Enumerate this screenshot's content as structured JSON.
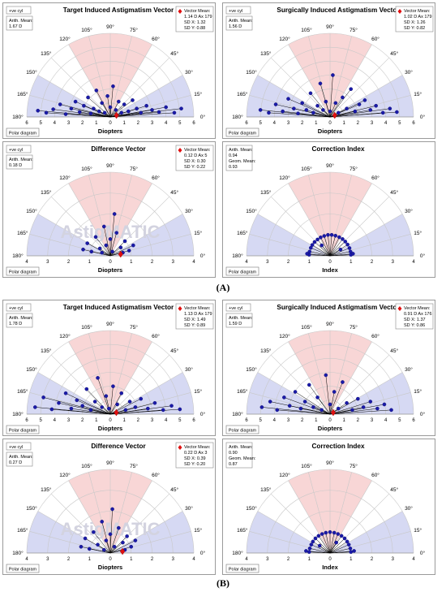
{
  "labels": {
    "polar_diagram": "Polar diagram",
    "cyl": "+ve cyl"
  },
  "sections": [
    {
      "label": "(A)",
      "panels": [
        {
          "title": "Target Induced Astigmatism Vector",
          "xlabel": "Diopters",
          "arith_lines": [
            "Arith. Mean:",
            "1.67 D"
          ],
          "vector_lines": [
            "Vector Mean:",
            "1.14 D Ax 179",
            "SD X: 1.32",
            "SD Y: 0.88"
          ],
          "show_cyl": true
        },
        {
          "title": "Surgically Induced Astigmatism Vector",
          "xlabel": "Diopters",
          "arith_lines": [
            "Arith. Mean:",
            "1.56 D"
          ],
          "vector_lines": [
            "Vector Mean:",
            "1.02 D Ax 179",
            "SD X: 1.26",
            "SD Y: 0.82"
          ],
          "show_cyl": true
        },
        {
          "title": "Difference Vector",
          "xlabel": "Diopters",
          "arith_lines": [
            "Arith. Mean:",
            "0.18 D"
          ],
          "vector_lines": [
            "Vector Mean:",
            "0.12 D Ax 5",
            "SD X: 0.30",
            "SD Y: 0.22"
          ],
          "show_cyl": true,
          "watermark": "AstigMATIC"
        },
        {
          "title": "Correction Index",
          "xlabel": "Index",
          "arith_lines": [
            "Arith. Mean:",
            "0.94",
            "Geom. Mean:",
            "0.93"
          ],
          "vector_lines": [],
          "show_cyl": false
        }
      ]
    },
    {
      "label": "(B)",
      "panels": [
        {
          "title": "Target Induced Astigmatism Vector",
          "xlabel": "Diopters",
          "arith_lines": [
            "Arith. Mean:",
            "1.78 D"
          ],
          "vector_lines": [
            "Vector Mean:",
            "1.13 D Ax 179",
            "SD X: 1.49",
            "SD Y: 0.89"
          ],
          "show_cyl": true
        },
        {
          "title": "Surgically Induced Astigmatism Vector",
          "xlabel": "Diopters",
          "arith_lines": [
            "Arith. Mean:",
            "1.59 D"
          ],
          "vector_lines": [
            "Vector Mean:",
            "0.91 D Ax 176",
            "SD X: 1.37",
            "SD Y: 0.86"
          ],
          "show_cyl": true
        },
        {
          "title": "Difference Vector",
          "xlabel": "Diopters",
          "arith_lines": [
            "Arith. Mean:",
            "0.27 D"
          ],
          "vector_lines": [
            "Vector Mean:",
            "0.22 D Ax 3",
            "SD X: 0.39",
            "SD Y: 0.20"
          ],
          "show_cyl": true,
          "watermark": "AstigMATIC"
        },
        {
          "title": "Correction Index",
          "xlabel": "Index",
          "arith_lines": [
            "Arith. Mean:",
            "0.90",
            "Geom. Mean:",
            "0.87"
          ],
          "vector_lines": [],
          "show_cyl": false
        }
      ]
    }
  ],
  "chart_data": [
    {
      "type": "scatter",
      "title": "Target Induced Astigmatism Vector",
      "xlabel": "Diopters",
      "xlim": [
        -6,
        6
      ],
      "angle_ticks": [
        "0°",
        "15°",
        "30°",
        "45°",
        "60°",
        "75°",
        "90°",
        "105°",
        "120°",
        "135°",
        "150°",
        "165°",
        "180°"
      ],
      "radial_ticks": [
        "6",
        "5",
        "4",
        "3",
        "2",
        "1",
        "0",
        "1",
        "2",
        "3",
        "4",
        "5",
        "6"
      ],
      "vector_mean": {
        "magnitude": 1.14,
        "axis": 179
      },
      "points": [
        [
          -5.2,
          0.45
        ],
        [
          -4.6,
          0.3
        ],
        [
          -4.1,
          0.55
        ],
        [
          -3.6,
          0.9
        ],
        [
          -3.2,
          0.2
        ],
        [
          -2.8,
          0.6
        ],
        [
          -2.5,
          1.1
        ],
        [
          -2.2,
          0.35
        ],
        [
          -1.9,
          0.8
        ],
        [
          -1.6,
          1.4
        ],
        [
          -1.4,
          0.25
        ],
        [
          -1.2,
          0.6
        ],
        [
          -1.0,
          1.9
        ],
        [
          -0.8,
          0.4
        ],
        [
          -0.6,
          1.0
        ],
        [
          -0.4,
          0.3
        ],
        [
          -0.2,
          1.5
        ],
        [
          0.0,
          0.7
        ],
        [
          0.2,
          2.2
        ],
        [
          0.4,
          0.5
        ],
        [
          0.6,
          1.1
        ],
        [
          0.8,
          0.3
        ],
        [
          1.0,
          0.9
        ],
        [
          1.3,
          0.4
        ],
        [
          1.6,
          1.2
        ],
        [
          1.9,
          0.6
        ],
        [
          2.2,
          0.3
        ],
        [
          2.6,
          0.8
        ],
        [
          3.0,
          0.5
        ],
        [
          3.5,
          0.35
        ],
        [
          4.0,
          0.7
        ],
        [
          4.6,
          0.3
        ],
        [
          5.1,
          0.6
        ]
      ]
    },
    {
      "type": "scatter",
      "title": "Surgically Induced Astigmatism Vector",
      "xlabel": "Diopters",
      "xlim": [
        -6,
        6
      ],
      "angle_ticks": [
        "0°",
        "15°",
        "30°",
        "45°",
        "60°",
        "75°",
        "90°",
        "105°",
        "120°",
        "135°",
        "150°",
        "165°",
        "180°"
      ],
      "radial_ticks": [
        "6",
        "5",
        "4",
        "3",
        "2",
        "1",
        "0",
        "1",
        "2",
        "3",
        "4",
        "5",
        "6"
      ],
      "vector_mean": {
        "magnitude": 1.02,
        "axis": 179
      },
      "points": [
        [
          -5.0,
          0.5
        ],
        [
          -4.4,
          0.3
        ],
        [
          -3.9,
          0.9
        ],
        [
          -3.4,
          0.4
        ],
        [
          -3.0,
          1.3
        ],
        [
          -2.6,
          0.6
        ],
        [
          -2.3,
          0.25
        ],
        [
          -2.0,
          1.0
        ],
        [
          -1.7,
          0.5
        ],
        [
          -1.4,
          1.7
        ],
        [
          -1.2,
          0.3
        ],
        [
          -0.9,
          0.8
        ],
        [
          -0.7,
          2.4
        ],
        [
          -0.5,
          0.5
        ],
        [
          -0.3,
          1.1
        ],
        [
          0.0,
          0.4
        ],
        [
          0.2,
          3.0
        ],
        [
          0.4,
          1.0
        ],
        [
          0.6,
          0.3
        ],
        [
          0.9,
          1.4
        ],
        [
          1.2,
          0.6
        ],
        [
          1.5,
          2.0
        ],
        [
          1.8,
          0.4
        ],
        [
          2.1,
          0.9
        ],
        [
          2.5,
          1.2
        ],
        [
          2.9,
          0.5
        ],
        [
          3.3,
          0.8
        ],
        [
          3.8,
          0.3
        ],
        [
          4.3,
          0.6
        ],
        [
          4.8,
          0.35
        ]
      ]
    },
    {
      "type": "scatter",
      "title": "Difference Vector",
      "xlabel": "Diopters",
      "xlim": [
        -4,
        4
      ],
      "angle_ticks": [
        "0°",
        "15°",
        "30°",
        "45°",
        "60°",
        "75°",
        "90°",
        "105°",
        "120°",
        "135°",
        "150°",
        "165°",
        "180°"
      ],
      "radial_ticks": [
        "4",
        "3",
        "2",
        "1",
        "0",
        "1",
        "2",
        "3",
        "4"
      ],
      "vector_mean": {
        "magnitude": 0.12,
        "axis": 5
      },
      "points": [
        [
          -1.3,
          0.3
        ],
        [
          -1.1,
          0.6
        ],
        [
          -0.9,
          0.2
        ],
        [
          -0.7,
          0.9
        ],
        [
          -0.5,
          0.35
        ],
        [
          -0.3,
          1.4
        ],
        [
          -0.2,
          0.5
        ],
        [
          0.0,
          0.8
        ],
        [
          0.1,
          0.2
        ],
        [
          0.3,
          1.1
        ],
        [
          0.5,
          0.4
        ],
        [
          0.7,
          0.7
        ],
        [
          0.9,
          0.25
        ],
        [
          1.1,
          0.5
        ],
        [
          0.2,
          2.0
        ],
        [
          -0.4,
          0.15
        ],
        [
          0.6,
          0.15
        ]
      ]
    },
    {
      "type": "scatter",
      "title": "Correction Index",
      "xlabel": "Index",
      "xlim": [
        -4,
        4
      ],
      "angle_ticks": [
        "0°",
        "15°",
        "30°",
        "45°",
        "60°",
        "75°",
        "90°",
        "105°",
        "120°",
        "135°",
        "150°",
        "165°",
        "180°"
      ],
      "radial_ticks": [
        "4",
        "3",
        "2",
        "1",
        "0",
        "1",
        "2",
        "3",
        "4"
      ],
      "points": [
        [
          -1.0,
          0.05
        ],
        [
          -0.98,
          0.2
        ],
        [
          -0.92,
          0.38
        ],
        [
          -0.85,
          0.52
        ],
        [
          -0.74,
          0.66
        ],
        [
          -0.6,
          0.78
        ],
        [
          -0.45,
          0.88
        ],
        [
          -0.28,
          0.95
        ],
        [
          -0.1,
          1.0
        ],
        [
          0.08,
          1.0
        ],
        [
          0.26,
          0.96
        ],
        [
          0.44,
          0.89
        ],
        [
          0.6,
          0.8
        ],
        [
          0.73,
          0.68
        ],
        [
          0.84,
          0.54
        ],
        [
          0.93,
          0.37
        ],
        [
          0.98,
          0.2
        ],
        [
          1.0,
          0.05
        ],
        [
          1.1,
          0.1
        ],
        [
          -1.1,
          0.1
        ],
        [
          0.5,
          0.3
        ],
        [
          -0.4,
          0.5
        ]
      ]
    },
    {
      "type": "scatter",
      "title": "Target Induced Astigmatism Vector",
      "xlabel": "Diopters",
      "xlim": [
        -6,
        6
      ],
      "angle_ticks": [
        "0°",
        "15°",
        "30°",
        "45°",
        "60°",
        "75°",
        "90°",
        "105°",
        "120°",
        "135°",
        "150°",
        "165°",
        "180°"
      ],
      "radial_ticks": [
        "6",
        "5",
        "4",
        "3",
        "2",
        "1",
        "0",
        "1",
        "2",
        "3",
        "4",
        "5",
        "6"
      ],
      "vector_mean": {
        "magnitude": 1.13,
        "axis": 179
      },
      "points": [
        [
          -5.4,
          0.5
        ],
        [
          -4.8,
          1.2
        ],
        [
          -4.2,
          0.35
        ],
        [
          -3.7,
          0.8
        ],
        [
          -3.2,
          1.5
        ],
        [
          -2.8,
          0.4
        ],
        [
          -2.4,
          1.0
        ],
        [
          -2.0,
          0.6
        ],
        [
          -1.7,
          1.8
        ],
        [
          -1.4,
          0.3
        ],
        [
          -1.1,
          0.9
        ],
        [
          -0.9,
          2.6
        ],
        [
          -0.6,
          0.5
        ],
        [
          -0.3,
          1.3
        ],
        [
          -0.1,
          0.4
        ],
        [
          0.2,
          2.0
        ],
        [
          0.5,
          0.7
        ],
        [
          0.8,
          1.5
        ],
        [
          1.1,
          0.3
        ],
        [
          1.4,
          0.9
        ],
        [
          1.8,
          0.5
        ],
        [
          2.2,
          1.1
        ],
        [
          2.7,
          0.4
        ],
        [
          3.2,
          0.8
        ],
        [
          3.8,
          0.3
        ],
        [
          4.4,
          0.6
        ],
        [
          5.0,
          0.35
        ]
      ]
    },
    {
      "type": "scatter",
      "title": "Surgically Induced Astigmatism Vector",
      "xlabel": "Diopters",
      "xlim": [
        -6,
        6
      ],
      "angle_ticks": [
        "0°",
        "15°",
        "30°",
        "45°",
        "60°",
        "75°",
        "90°",
        "105°",
        "120°",
        "135°",
        "150°",
        "165°",
        "180°"
      ],
      "radial_ticks": [
        "6",
        "5",
        "4",
        "3",
        "2",
        "1",
        "0",
        "1",
        "2",
        "3",
        "4",
        "5",
        "6"
      ],
      "vector_mean": {
        "magnitude": 0.91,
        "axis": 176
      },
      "points": [
        [
          -4.9,
          0.5
        ],
        [
          -4.3,
          0.9
        ],
        [
          -3.8,
          0.3
        ],
        [
          -3.3,
          1.2
        ],
        [
          -2.9,
          0.6
        ],
        [
          -2.5,
          1.6
        ],
        [
          -2.1,
          0.4
        ],
        [
          -1.8,
          0.9
        ],
        [
          -1.5,
          2.1
        ],
        [
          -1.2,
          0.5
        ],
        [
          -0.9,
          1.2
        ],
        [
          -0.6,
          0.3
        ],
        [
          -0.3,
          2.8
        ],
        [
          0.0,
          0.7
        ],
        [
          0.3,
          1.6
        ],
        [
          0.6,
          0.4
        ],
        [
          0.9,
          2.3
        ],
        [
          1.2,
          0.8
        ],
        [
          1.6,
          0.3
        ],
        [
          2.0,
          1.1
        ],
        [
          2.4,
          0.5
        ],
        [
          2.9,
          0.9
        ],
        [
          3.4,
          0.4
        ],
        [
          3.9,
          0.7
        ],
        [
          4.4,
          0.3
        ]
      ]
    },
    {
      "type": "scatter",
      "title": "Difference Vector",
      "xlabel": "Diopters",
      "xlim": [
        -4,
        4
      ],
      "angle_ticks": [
        "0°",
        "15°",
        "30°",
        "45°",
        "60°",
        "75°",
        "90°",
        "105°",
        "120°",
        "135°",
        "150°",
        "165°",
        "180°"
      ],
      "radial_ticks": [
        "4",
        "3",
        "2",
        "1",
        "0",
        "1",
        "2",
        "3",
        "4"
      ],
      "vector_mean": {
        "magnitude": 0.22,
        "axis": 3
      },
      "points": [
        [
          -1.4,
          0.3
        ],
        [
          -1.2,
          0.7
        ],
        [
          -1.0,
          0.2
        ],
        [
          -0.8,
          1.0
        ],
        [
          -0.6,
          0.4
        ],
        [
          -0.4,
          1.5
        ],
        [
          -0.2,
          0.6
        ],
        [
          0.0,
          0.9
        ],
        [
          0.2,
          0.3
        ],
        [
          0.4,
          1.2
        ],
        [
          0.6,
          0.5
        ],
        [
          0.8,
          0.8
        ],
        [
          1.0,
          0.3
        ],
        [
          1.2,
          0.6
        ],
        [
          0.1,
          2.1
        ],
        [
          -0.3,
          0.15
        ],
        [
          0.7,
          0.15
        ]
      ]
    },
    {
      "type": "scatter",
      "title": "Correction Index",
      "xlabel": "Index",
      "xlim": [
        -4,
        4
      ],
      "angle_ticks": [
        "0°",
        "15°",
        "30°",
        "45°",
        "60°",
        "75°",
        "90°",
        "105°",
        "120°",
        "135°",
        "150°",
        "165°",
        "180°"
      ],
      "radial_ticks": [
        "4",
        "3",
        "2",
        "1",
        "0",
        "1",
        "2",
        "3",
        "4"
      ],
      "points": [
        [
          -1.0,
          0.05
        ],
        [
          -0.97,
          0.22
        ],
        [
          -0.9,
          0.4
        ],
        [
          -0.82,
          0.55
        ],
        [
          -0.7,
          0.7
        ],
        [
          -0.55,
          0.82
        ],
        [
          -0.38,
          0.91
        ],
        [
          -0.2,
          0.97
        ],
        [
          0.0,
          1.0
        ],
        [
          0.2,
          0.97
        ],
        [
          0.38,
          0.91
        ],
        [
          0.55,
          0.82
        ],
        [
          0.7,
          0.7
        ],
        [
          0.82,
          0.55
        ],
        [
          0.9,
          0.4
        ],
        [
          0.97,
          0.22
        ],
        [
          1.0,
          0.05
        ],
        [
          1.15,
          0.1
        ],
        [
          -1.15,
          0.1
        ],
        [
          0.3,
          0.5
        ],
        [
          -0.5,
          0.35
        ]
      ]
    }
  ]
}
